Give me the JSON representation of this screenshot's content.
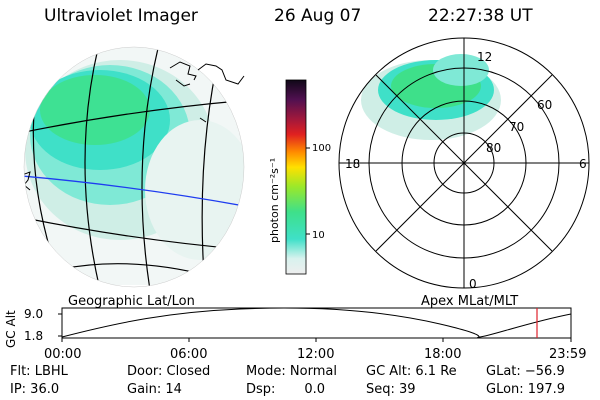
{
  "header": {
    "instrument": "Ultraviolet Imager",
    "date": "26 Aug 07",
    "time": "22:27:38 UT"
  },
  "colorbar": {
    "label": "photon cm⁻²s⁻¹",
    "ticks": [
      "100",
      "10"
    ]
  },
  "left_panel": {
    "caption": "Geographic Lat/Lon"
  },
  "right_panel": {
    "caption": "Apex MLat/MLT",
    "mlt_labels": {
      "top": "12",
      "left": "18",
      "right": "6",
      "bottom": "0"
    },
    "mlat_labels": [
      "60",
      "70",
      "80"
    ]
  },
  "altitude_plot": {
    "ylabel": "GC Alt",
    "y_ticks": [
      "9.0",
      "1.8"
    ],
    "x_ticks": [
      "00:00",
      "06:00",
      "12:00",
      "18:00",
      "23:59"
    ]
  },
  "info": {
    "flt": "Flt: LBHL",
    "door": "Door: Closed",
    "mode": "Mode: Normal",
    "gc_alt": "GC Alt: 6.1 Re",
    "glat": "GLat: −56.9",
    "ip": "IP: 36.0",
    "gain": "Gain: 14",
    "dsp": "Dsp:       0.0",
    "seq": "Seq: 39",
    "glon": "GLon: 197.9"
  },
  "colors": {
    "aurora_green": "#3ee08a",
    "aurora_cyan": "#3fe0c8",
    "aurora_pale": "#cfeee6",
    "meridian_blue": "#1e3cf0",
    "time_marker": "#e0202a"
  }
}
